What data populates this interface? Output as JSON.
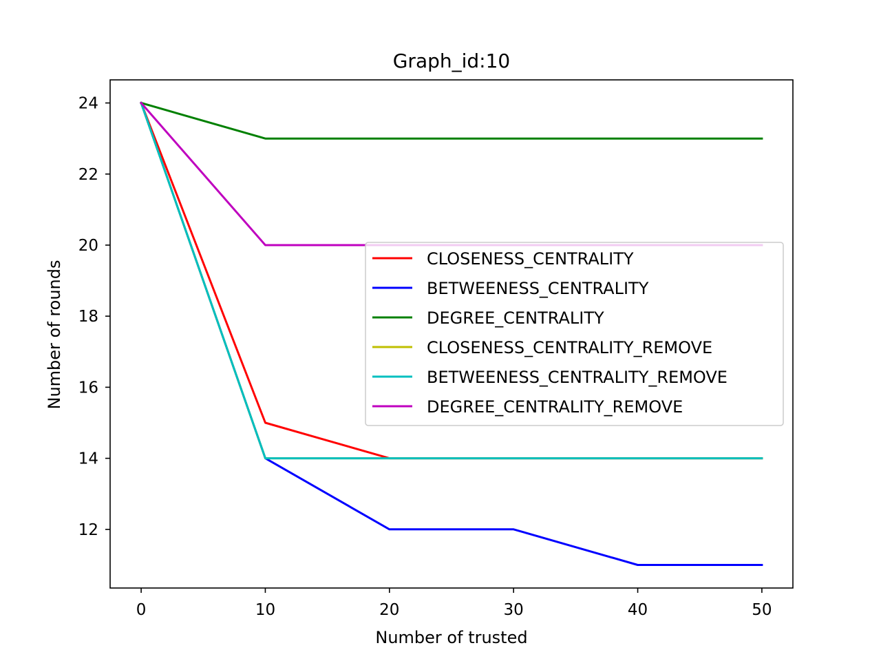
{
  "chart_data": {
    "type": "line",
    "title": "Graph_id:10",
    "xlabel": "Number of trusted",
    "ylabel": "Number of rounds",
    "x": [
      0,
      10,
      20,
      30,
      40,
      50
    ],
    "xticks": [
      0,
      10,
      20,
      30,
      40,
      50
    ],
    "yticks": [
      12,
      14,
      16,
      18,
      20,
      22,
      24
    ],
    "xlim": [
      -2.5,
      52.5
    ],
    "ylim": [
      10.35,
      24.65
    ],
    "grid": false,
    "legend_position": "center-right",
    "series": [
      {
        "name": "CLOSENESS_CENTRALITY",
        "color": "#ff0000",
        "values": [
          24,
          15,
          14,
          14,
          14,
          14
        ]
      },
      {
        "name": "BETWEENESS_CENTRALITY",
        "color": "#0000ff",
        "values": [
          24,
          14,
          12,
          12,
          11,
          11
        ]
      },
      {
        "name": "DEGREE_CENTRALITY",
        "color": "#008000",
        "values": [
          24,
          23,
          23,
          23,
          23,
          23
        ]
      },
      {
        "name": "CLOSENESS_CENTRALITY_REMOVE",
        "color": "#bfbf00",
        "values": [
          24,
          14,
          14,
          14,
          14,
          14
        ]
      },
      {
        "name": "BETWEENESS_CENTRALITY_REMOVE",
        "color": "#00bfbf",
        "values": [
          24,
          14,
          14,
          14,
          14,
          14
        ]
      },
      {
        "name": "DEGREE_CENTRALITY_REMOVE",
        "color": "#bf00bf",
        "values": [
          24,
          20,
          20,
          20,
          20,
          20
        ]
      }
    ]
  }
}
